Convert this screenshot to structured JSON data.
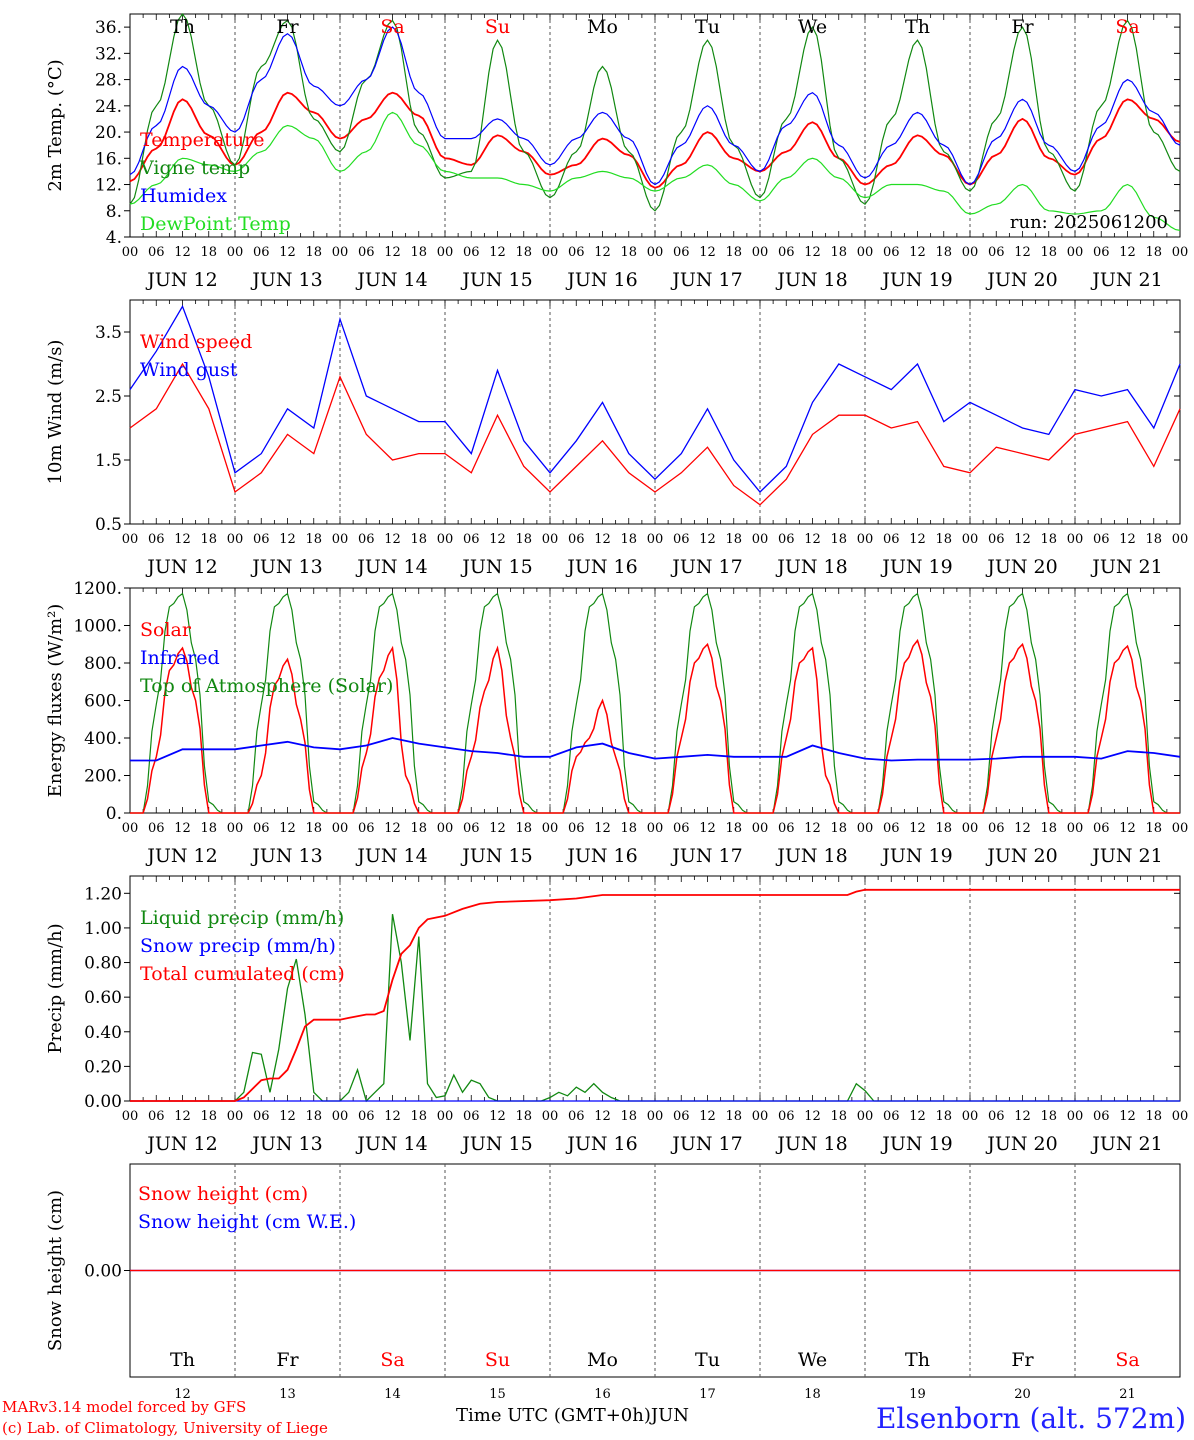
{
  "footer": {
    "model_line": "MARv3.14 model forced by GFS",
    "copyright_line": "(c) Lab. of Climatology, University of Liege",
    "time_axis_label": "Time UTC (GMT+0h)",
    "month_label": "JUN",
    "station": "Elsenborn (alt. 572m)"
  },
  "run_label": "run: 2025061200",
  "colors": {
    "red": "#ff0000",
    "green": "#118811",
    "blue": "#0000ff",
    "lightgreen": "#22dd22",
    "weekend": "#ff0000"
  },
  "x_axis": {
    "hour_ticks": [
      "00",
      "06",
      "12",
      "18"
    ],
    "final_tick": "00",
    "date_labels": [
      "JUN 12",
      "JUN 13",
      "JUN 14",
      "JUN 15",
      "JUN 16",
      "JUN 17",
      "JUN 18",
      "JUN 19",
      "JUN 20",
      "JUN 21"
    ],
    "day_names": [
      "Th",
      "Fr",
      "Sa",
      "Su",
      "Mo",
      "Tu",
      "We",
      "Th",
      "Fr",
      "Sa"
    ],
    "day_numbers": [
      "12",
      "13",
      "14",
      "15",
      "16",
      "17",
      "18",
      "19",
      "20",
      "21"
    ],
    "weekend_flags": [
      false,
      false,
      true,
      true,
      false,
      false,
      false,
      false,
      false,
      true
    ]
  },
  "chart_data": [
    {
      "type": "line",
      "ylabel": "2m Temp. (°C)",
      "ylim": [
        4,
        38
      ],
      "yticks": [
        4,
        8,
        12,
        16,
        20,
        24,
        28,
        32,
        36
      ],
      "ytick_labels": [
        "4.",
        "8.",
        "12.",
        "16.",
        "20.",
        "24.",
        "28.",
        "32.",
        "36."
      ],
      "x_hours": [
        0,
        6,
        12,
        18,
        24,
        30,
        36,
        42,
        48,
        54,
        60,
        66,
        72,
        78,
        84,
        90,
        96,
        102,
        108,
        114,
        120,
        126,
        132,
        138,
        144,
        150,
        156,
        162,
        168,
        174,
        180,
        186,
        192,
        198,
        204,
        210,
        216,
        222,
        228,
        234,
        240
      ],
      "series": [
        {
          "name": "Temperature",
          "color": "red",
          "values": [
            12.5,
            17.5,
            25.0,
            19.5,
            15.0,
            20.0,
            26.0,
            23.0,
            19.0,
            22.0,
            26.0,
            22.5,
            16.0,
            15.0,
            19.5,
            17.0,
            13.5,
            15.0,
            19.0,
            16.5,
            11.5,
            15.0,
            20.0,
            16.0,
            14.0,
            17.0,
            21.5,
            16.0,
            12.0,
            15.0,
            19.5,
            16.5,
            12.0,
            16.5,
            22.0,
            16.0,
            13.5,
            19.0,
            25.0,
            22.0,
            18.5
          ]
        },
        {
          "name": "Vigne temp",
          "color": "green",
          "values": [
            9.0,
            24.0,
            38.0,
            24.0,
            15.0,
            30.0,
            37.0,
            22.0,
            17.0,
            28.0,
            37.0,
            20.0,
            13.0,
            14.0,
            34.0,
            17.0,
            10.0,
            17.0,
            30.0,
            17.0,
            8.0,
            20.0,
            34.0,
            18.0,
            10.0,
            22.0,
            36.0,
            16.0,
            9.0,
            22.0,
            34.0,
            17.0,
            11.0,
            22.0,
            36.0,
            17.0,
            11.0,
            24.0,
            37.0,
            20.0,
            14.0
          ]
        },
        {
          "name": "Humidex",
          "color": "blue",
          "values": [
            13.5,
            21.0,
            30.0,
            24.0,
            20.0,
            28.0,
            35.0,
            27.0,
            24.0,
            28.0,
            36.0,
            26.0,
            19.0,
            19.0,
            22.0,
            19.0,
            15.0,
            19.0,
            23.0,
            19.0,
            12.0,
            18.0,
            24.0,
            18.0,
            14.0,
            21.0,
            26.0,
            18.0,
            13.0,
            18.0,
            23.0,
            18.0,
            12.0,
            19.0,
            25.0,
            18.0,
            14.0,
            21.0,
            28.0,
            23.0,
            18.0
          ]
        },
        {
          "name": "DewPoint Temp",
          "color": "lightgreen",
          "values": [
            9.0,
            12.0,
            16.0,
            15.0,
            14.0,
            17.0,
            21.0,
            19.0,
            14.0,
            17.0,
            23.0,
            18.0,
            14.0,
            13.0,
            13.0,
            12.0,
            11.0,
            13.0,
            14.0,
            13.0,
            11.0,
            13.0,
            15.0,
            12.0,
            9.5,
            13.0,
            16.0,
            13.0,
            10.0,
            12.0,
            12.0,
            11.0,
            7.5,
            9.0,
            12.0,
            8.0,
            7.5,
            8.0,
            12.0,
            7.0,
            5.0
          ]
        }
      ]
    },
    {
      "type": "line",
      "ylabel": "10m Wind (m/s)",
      "ylim": [
        0.5,
        4.0
      ],
      "yticks": [
        0.5,
        1.5,
        2.5,
        3.5
      ],
      "ytick_labels": [
        "0.5",
        "1.5",
        "2.5",
        "3.5"
      ],
      "x_hours": [
        0,
        6,
        12,
        18,
        24,
        30,
        36,
        42,
        48,
        54,
        60,
        66,
        72,
        78,
        84,
        90,
        96,
        102,
        108,
        114,
        120,
        126,
        132,
        138,
        144,
        150,
        156,
        162,
        168,
        174,
        180,
        186,
        192,
        198,
        204,
        210,
        216,
        222,
        228,
        234,
        240
      ],
      "series": [
        {
          "name": "Wind speed",
          "color": "red",
          "values": [
            2.0,
            2.3,
            3.0,
            2.3,
            1.0,
            1.3,
            1.9,
            1.6,
            2.8,
            1.9,
            1.5,
            1.6,
            1.6,
            1.3,
            2.2,
            1.4,
            1.0,
            1.4,
            1.8,
            1.3,
            1.0,
            1.3,
            1.7,
            1.1,
            0.8,
            1.2,
            1.9,
            2.2,
            2.2,
            2.0,
            2.1,
            1.4,
            1.3,
            1.7,
            1.6,
            1.5,
            1.9,
            2.0,
            2.1,
            1.4,
            2.3
          ]
        },
        {
          "name": "Wind gust",
          "color": "blue",
          "values": [
            2.6,
            3.2,
            3.9,
            2.8,
            1.3,
            1.6,
            2.3,
            2.0,
            3.7,
            2.5,
            2.3,
            2.1,
            2.1,
            1.6,
            2.9,
            1.8,
            1.3,
            1.8,
            2.4,
            1.6,
            1.2,
            1.6,
            2.3,
            1.5,
            1.0,
            1.4,
            2.4,
            3.0,
            2.8,
            2.6,
            3.0,
            2.1,
            2.4,
            2.2,
            2.0,
            1.9,
            2.6,
            2.5,
            2.6,
            2.0,
            3.0
          ]
        }
      ]
    },
    {
      "type": "line",
      "ylabel": "Energy fluxes (W/m²)",
      "ylim": [
        0,
        1200
      ],
      "yticks": [
        0,
        200,
        400,
        600,
        800,
        1000,
        1200
      ],
      "ytick_labels": [
        "0.",
        "200.",
        "400.",
        "600.",
        "800.",
        "1000.",
        "1200."
      ],
      "diurnal_hours": [
        0,
        3,
        6,
        9,
        12,
        15,
        18,
        21
      ],
      "days": [
        {
          "solar": [
            0,
            0,
            300,
            760,
            880,
            600,
            0,
            0
          ],
          "toa": [
            0,
            0,
            580,
            1100,
            1170,
            820,
            60,
            0
          ]
        },
        {
          "solar": [
            0,
            0,
            200,
            680,
            820,
            500,
            0,
            0
          ],
          "toa": [
            0,
            0,
            580,
            1100,
            1170,
            820,
            60,
            0
          ]
        },
        {
          "solar": [
            0,
            0,
            320,
            720,
            880,
            200,
            0,
            0
          ],
          "toa": [
            0,
            0,
            580,
            1100,
            1170,
            820,
            60,
            0
          ]
        },
        {
          "solar": [
            0,
            0,
            300,
            650,
            880,
            400,
            0,
            0
          ],
          "toa": [
            0,
            0,
            580,
            1100,
            1170,
            820,
            60,
            0
          ]
        },
        {
          "solar": [
            0,
            0,
            300,
            400,
            600,
            300,
            0,
            0
          ],
          "toa": [
            0,
            0,
            580,
            1100,
            1170,
            820,
            60,
            0
          ]
        },
        {
          "solar": [
            0,
            0,
            400,
            800,
            900,
            600,
            0,
            0
          ],
          "toa": [
            0,
            0,
            580,
            1100,
            1170,
            820,
            60,
            0
          ]
        },
        {
          "solar": [
            0,
            0,
            400,
            800,
            880,
            200,
            0,
            0
          ],
          "toa": [
            0,
            0,
            580,
            1100,
            1170,
            820,
            60,
            0
          ]
        },
        {
          "solar": [
            0,
            0,
            400,
            800,
            920,
            620,
            0,
            0
          ],
          "toa": [
            0,
            0,
            580,
            1100,
            1170,
            820,
            60,
            0
          ]
        },
        {
          "solar": [
            0,
            0,
            400,
            800,
            900,
            600,
            0,
            0
          ],
          "toa": [
            0,
            0,
            580,
            1100,
            1170,
            820,
            60,
            0
          ]
        },
        {
          "solar": [
            0,
            0,
            400,
            800,
            890,
            600,
            0,
            0
          ],
          "toa": [
            0,
            0,
            580,
            1100,
            1170,
            820,
            60,
            0
          ]
        }
      ],
      "series": [
        {
          "name": "Solar",
          "color": "red"
        },
        {
          "name": "Infrared",
          "color": "blue",
          "x_hours": [
            0,
            6,
            12,
            18,
            24,
            30,
            36,
            42,
            48,
            54,
            60,
            66,
            72,
            78,
            84,
            90,
            96,
            102,
            108,
            114,
            120,
            126,
            132,
            138,
            144,
            150,
            156,
            162,
            168,
            174,
            180,
            186,
            192,
            198,
            204,
            210,
            216,
            222,
            228,
            234,
            240
          ],
          "values": [
            280,
            280,
            340,
            340,
            340,
            360,
            380,
            350,
            340,
            360,
            400,
            370,
            350,
            330,
            320,
            300,
            300,
            350,
            370,
            320,
            290,
            300,
            310,
            300,
            300,
            300,
            360,
            320,
            290,
            280,
            285,
            285,
            285,
            290,
            300,
            300,
            300,
            290,
            330,
            320,
            300
          ]
        },
        {
          "name": "Top of Atmosphere (Solar)",
          "color": "green"
        }
      ]
    },
    {
      "type": "line",
      "ylabel": "Precip (mm/h)",
      "ylim": [
        0,
        1.3
      ],
      "yticks": [
        0,
        0.2,
        0.4,
        0.6,
        0.8,
        1.0,
        1.2
      ],
      "ytick_labels": [
        "0.00",
        "0.20",
        "0.40",
        "0.60",
        "0.80",
        "1.00",
        "1.20"
      ],
      "series": [
        {
          "name": "Liquid precip (mm/h)",
          "color": "green",
          "x_hours": [
            0,
            24,
            26,
            28,
            30,
            32,
            34,
            36,
            38,
            40,
            42,
            44,
            46,
            48,
            50,
            52,
            54,
            56,
            58,
            60,
            62,
            64,
            66,
            68,
            70,
            72,
            74,
            76,
            78,
            80,
            82,
            84,
            94,
            96,
            98,
            100,
            102,
            104,
            106,
            108,
            110,
            112,
            114,
            116,
            118,
            120,
            164,
            166,
            168,
            170,
            240
          ],
          "values": [
            0,
            0,
            0.05,
            0.28,
            0.27,
            0.05,
            0.3,
            0.65,
            0.82,
            0.5,
            0.05,
            0,
            0,
            0,
            0.05,
            0.18,
            0,
            0.05,
            0.1,
            1.08,
            0.8,
            0.35,
            0.95,
            0.1,
            0.02,
            0.03,
            0.15,
            0.05,
            0.12,
            0.1,
            0.02,
            0,
            0,
            0.02,
            0.05,
            0.03,
            0.08,
            0.05,
            0.1,
            0.05,
            0.02,
            0,
            0,
            0,
            0,
            0,
            0,
            0.1,
            0.06,
            0,
            0
          ]
        },
        {
          "name": "Snow precip (mm/h)",
          "color": "blue",
          "x_hours": [
            0,
            240
          ],
          "values": [
            0,
            0
          ]
        },
        {
          "name": "Total cumulated (cm)",
          "color": "red",
          "x_hours": [
            0,
            24,
            26,
            28,
            30,
            32,
            34,
            36,
            38,
            40,
            42,
            44,
            46,
            48,
            50,
            54,
            56,
            58,
            60,
            62,
            64,
            66,
            68,
            70,
            72,
            76,
            80,
            84,
            96,
            102,
            108,
            114,
            120,
            130,
            144,
            164,
            166,
            168,
            170,
            240
          ],
          "values": [
            0,
            0,
            0.02,
            0.07,
            0.12,
            0.13,
            0.13,
            0.18,
            0.3,
            0.43,
            0.47,
            0.47,
            0.47,
            0.47,
            0.48,
            0.5,
            0.5,
            0.52,
            0.7,
            0.85,
            0.9,
            1.0,
            1.05,
            1.06,
            1.07,
            1.11,
            1.14,
            1.15,
            1.16,
            1.17,
            1.19,
            1.19,
            1.19,
            1.19,
            1.19,
            1.19,
            1.21,
            1.22,
            1.22,
            1.22
          ]
        }
      ]
    },
    {
      "type": "line",
      "ylabel": "Snow height (cm)",
      "ylim": [
        -1,
        1
      ],
      "yticks": [
        0
      ],
      "ytick_labels": [
        "0.00"
      ],
      "series": [
        {
          "name": "Snow height (cm)",
          "color": "red",
          "x_hours": [
            0,
            240
          ],
          "values": [
            0,
            0
          ]
        },
        {
          "name": "Snow height (cm W.E.)",
          "color": "blue",
          "x_hours": [
            0,
            240
          ],
          "values": [
            0,
            0
          ]
        }
      ]
    }
  ]
}
